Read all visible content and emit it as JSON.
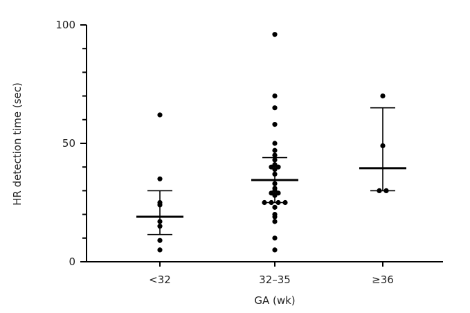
{
  "chart_data": {
    "type": "scatter",
    "xlabel": "GA (wk)",
    "ylabel": "HR detection time (sec)",
    "ylim": [
      0,
      100
    ],
    "yticks": [
      0,
      50,
      100
    ],
    "categories": [
      "<32",
      "32–35",
      "≥36"
    ],
    "groups": [
      {
        "category": "<32",
        "points": [
          62,
          35,
          25,
          24,
          17,
          15,
          9,
          5
        ],
        "central": 19,
        "error_low": 11.5,
        "error_high": 30
      },
      {
        "category": "32–35",
        "points": [
          96,
          70,
          65,
          58,
          50,
          47,
          45,
          43,
          41,
          40,
          40,
          39,
          37,
          33,
          31,
          30,
          29,
          29,
          28,
          25,
          25,
          25,
          25,
          23,
          20,
          19,
          17,
          10,
          5
        ],
        "central": 34.5,
        "error_low": 25,
        "error_high": 44
      },
      {
        "category": "≥36",
        "points": [
          70,
          49,
          30,
          30
        ],
        "central": 39.5,
        "error_low": 30,
        "error_high": 65
      }
    ],
    "colors": {
      "points": "#000000",
      "axis": "#000000",
      "bars": "#000000"
    }
  }
}
